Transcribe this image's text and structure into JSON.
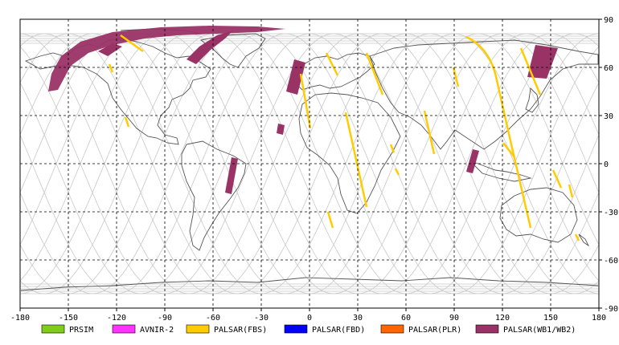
{
  "map": {
    "lon_range": [
      -180,
      180
    ],
    "lat_range": [
      -90,
      90
    ],
    "lon_ticks": [
      "-180",
      "-150",
      "-120",
      "-90",
      "-60",
      "-30",
      "0",
      "30",
      "60",
      "90",
      "120",
      "150",
      "180"
    ],
    "lat_ticks": [
      "90",
      "60",
      "30",
      "0",
      "-30",
      "-60",
      "-90"
    ],
    "grid": true,
    "grid_style": "dashed"
  },
  "legend": [
    {
      "label": "PRSIM",
      "color": "#80cc1a"
    },
    {
      "label": "AVNIR-2",
      "color": "#ff33ff"
    },
    {
      "label": "PALSAR(FBS)",
      "color": "#ffcc00"
    },
    {
      "label": "PALSAR(FBD)",
      "color": "#0000ff"
    },
    {
      "label": "PALSAR(PLR)",
      "color": "#ff6600"
    },
    {
      "label": "PALSAR(WB1/WB2)",
      "color": "#993366"
    }
  ],
  "colors": {
    "orbit_track": "#c8c8c8",
    "coastline": "#555555",
    "fbs": "#ffcc00",
    "wb": "#993366"
  }
}
